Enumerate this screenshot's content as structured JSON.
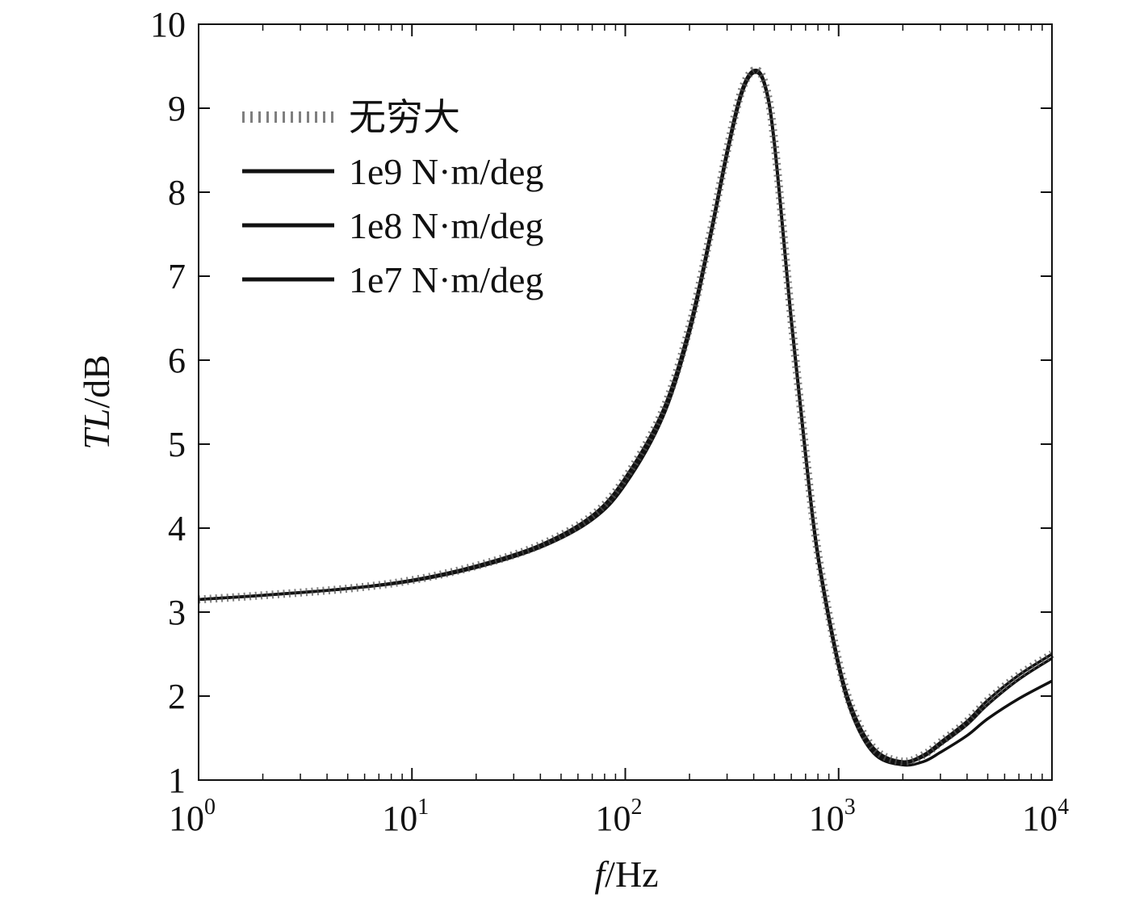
{
  "chart_data": {
    "type": "line",
    "title": "",
    "xlabel_italic": "f",
    "xlabel_unit": "/Hz",
    "ylabel_italic": "TL",
    "ylabel_unit": "/dB",
    "xscale": "log",
    "xlim": [
      1,
      10000
    ],
    "ylim": [
      1,
      10
    ],
    "grid": false,
    "legend_position": "upper-left",
    "x_ticks": [
      {
        "value": 1,
        "base": "10",
        "exp": "0"
      },
      {
        "value": 10,
        "base": "10",
        "exp": "1"
      },
      {
        "value": 100,
        "base": "10",
        "exp": "2"
      },
      {
        "value": 1000,
        "base": "10",
        "exp": "3"
      },
      {
        "value": 10000,
        "base": "10",
        "exp": "4"
      }
    ],
    "y_ticks": [
      "1",
      "2",
      "3",
      "4",
      "5",
      "6",
      "7",
      "8",
      "9",
      "10"
    ],
    "series": [
      {
        "name": "无穷大",
        "style": "dotted",
        "color": "#555555",
        "x": [
          1,
          2,
          5,
          10,
          20,
          40,
          70,
          100,
          150,
          200,
          250,
          300,
          350,
          400,
          450,
          500,
          600,
          700,
          800,
          1000,
          1200,
          1500,
          2000,
          2500,
          3000,
          4000,
          5000,
          7000,
          10000
        ],
        "y": [
          3.15,
          3.2,
          3.28,
          3.38,
          3.55,
          3.8,
          4.15,
          4.6,
          5.4,
          6.4,
          7.5,
          8.5,
          9.2,
          9.45,
          9.3,
          8.6,
          6.5,
          4.9,
          3.7,
          2.4,
          1.75,
          1.35,
          1.22,
          1.3,
          1.45,
          1.7,
          1.95,
          2.25,
          2.5
        ]
      },
      {
        "name": "1e9 N·m/deg",
        "style": "solid",
        "color": "#111111",
        "x": [
          1,
          2,
          5,
          10,
          20,
          40,
          70,
          100,
          150,
          200,
          250,
          300,
          350,
          400,
          450,
          500,
          600,
          700,
          800,
          1000,
          1200,
          1500,
          2000,
          2500,
          3000,
          4000,
          5000,
          7000,
          10000
        ],
        "y": [
          3.15,
          3.2,
          3.28,
          3.38,
          3.55,
          3.8,
          4.15,
          4.6,
          5.4,
          6.4,
          7.5,
          8.5,
          9.2,
          9.45,
          9.3,
          8.6,
          6.5,
          4.9,
          3.7,
          2.4,
          1.75,
          1.35,
          1.22,
          1.3,
          1.45,
          1.7,
          1.95,
          2.25,
          2.5
        ]
      },
      {
        "name": "1e8 N·m/deg",
        "style": "solid",
        "color": "#111111",
        "x": [
          1,
          2,
          5,
          10,
          20,
          40,
          70,
          100,
          150,
          200,
          250,
          300,
          350,
          400,
          450,
          500,
          600,
          700,
          800,
          1000,
          1200,
          1500,
          2000,
          2500,
          3000,
          4000,
          5000,
          7000,
          10000
        ],
        "y": [
          3.15,
          3.2,
          3.28,
          3.38,
          3.55,
          3.8,
          4.14,
          4.58,
          5.38,
          6.38,
          7.48,
          8.48,
          9.18,
          9.43,
          9.28,
          8.58,
          6.48,
          4.88,
          3.68,
          2.38,
          1.73,
          1.33,
          1.21,
          1.28,
          1.42,
          1.66,
          1.9,
          2.2,
          2.45
        ]
      },
      {
        "name": "1e7 N·m/deg",
        "style": "solid",
        "color": "#111111",
        "x": [
          1,
          2,
          5,
          10,
          20,
          40,
          70,
          100,
          150,
          200,
          250,
          300,
          350,
          400,
          450,
          500,
          600,
          700,
          800,
          1000,
          1200,
          1500,
          2000,
          2500,
          3000,
          4000,
          5000,
          7000,
          10000
        ],
        "y": [
          3.15,
          3.2,
          3.28,
          3.37,
          3.53,
          3.77,
          4.1,
          4.52,
          5.32,
          6.32,
          7.44,
          8.44,
          9.15,
          9.42,
          9.27,
          8.56,
          6.45,
          4.85,
          3.64,
          2.34,
          1.68,
          1.29,
          1.18,
          1.22,
          1.33,
          1.53,
          1.73,
          1.97,
          2.18
        ]
      }
    ]
  }
}
